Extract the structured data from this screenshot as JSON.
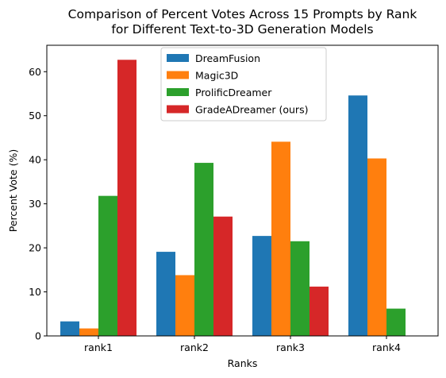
{
  "chart_data": {
    "type": "bar",
    "title": "Comparison of Percent Votes Across 15 Prompts by Rank\nfor Different Text-to-3D Generation Models",
    "xlabel": "Ranks",
    "ylabel": "Percent Vote (%)",
    "categories": [
      "rank1",
      "rank2",
      "rank3",
      "rank4"
    ],
    "ylim": [
      0,
      66
    ],
    "yticks": [
      0,
      10,
      20,
      30,
      40,
      50,
      60
    ],
    "legend_position": "top-center",
    "grid": false,
    "series": [
      {
        "name": "DreamFusion",
        "color": "#1f77b4",
        "values": [
          3.3,
          19.1,
          22.7,
          54.6
        ]
      },
      {
        "name": "Magic3D",
        "color": "#ff7f0e",
        "values": [
          1.7,
          13.8,
          44.1,
          40.3
        ]
      },
      {
        "name": "ProlificDreamer",
        "color": "#2ca02c",
        "values": [
          31.8,
          39.3,
          21.5,
          6.2
        ]
      },
      {
        "name": "GradeADreamer (ours)",
        "color": "#d62728",
        "values": [
          62.7,
          27.1,
          11.2,
          0
        ]
      }
    ]
  }
}
